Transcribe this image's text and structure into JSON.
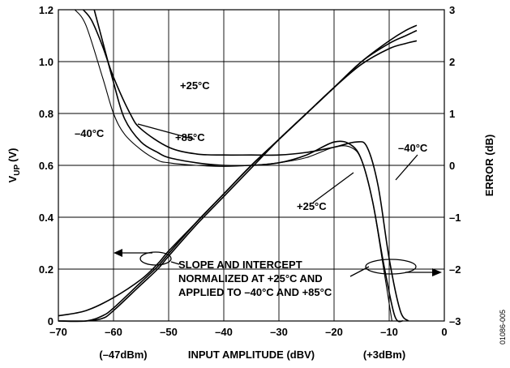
{
  "chart_data": {
    "type": "line",
    "xlabel": "INPUT AMPLITUDE (dBV)",
    "ylabel_left": "V",
    "ylabel_left_sub": "UP",
    "ylabel_left_unit": "(V)",
    "ylabel_right": "ERROR (dB)",
    "xlim": [
      -70,
      0
    ],
    "ylim_left": [
      0,
      1.2
    ],
    "ylim_right": [
      -3,
      3
    ],
    "x_ticks": [
      "–70",
      "–60",
      "–50",
      "–40",
      "–30",
      "–20",
      "–10",
      "0"
    ],
    "y_left_ticks": [
      "0",
      "0.2",
      "0.4",
      "0.6",
      "0.8",
      "1.0",
      "1.2"
    ],
    "y_right_ticks": [
      "–3",
      "–2",
      "–1",
      "0",
      "1",
      "2",
      "3"
    ],
    "x_sub_labels": {
      "left": "(–47dBm)",
      "right": "(+3dBm)"
    },
    "grid": true,
    "annotations": {
      "plus25_top": "+25°C",
      "minus40_left": "–40°C",
      "plus85": "+85°C",
      "minus40_right": "–40°C",
      "plus25_bottom": "+25°C",
      "note_line1": "SLOPE AND INTERCEPT",
      "note_line2": "NORMALIZED AT +25°C AND",
      "note_line3": "APPLIED TO –40°C AND +85°C"
    },
    "figure_id": "01086-005",
    "series": [
      {
        "axis": "left",
        "x": [
          -70,
          -65,
          -60,
          -55,
          -52,
          -50,
          -45,
          -40,
          -35,
          -30,
          -25,
          -20,
          -15,
          -10,
          -7,
          -5
        ],
        "y": [
          0.02,
          0.04,
          0.09,
          0.16,
          0.22,
          0.27,
          0.38,
          0.49,
          0.6,
          0.7,
          0.8,
          0.9,
          1.0,
          1.08,
          1.12,
          1.14
        ]
      },
      {
        "axis": "left",
        "x": [
          -70,
          -65,
          -62,
          -60,
          -55,
          -52,
          -50,
          -45,
          -40,
          -35,
          -30,
          -25,
          -20,
          -15,
          -10,
          -7,
          -5
        ],
        "y": [
          0.0,
          0.0,
          0.02,
          0.05,
          0.15,
          0.21,
          0.26,
          0.38,
          0.49,
          0.6,
          0.7,
          0.8,
          0.9,
          1.0,
          1.07,
          1.1,
          1.12
        ]
      },
      {
        "axis": "left",
        "x": [
          -70,
          -65,
          -62,
          -60,
          -55,
          -52,
          -50,
          -45,
          -40,
          -35,
          -30,
          -25,
          -20,
          -15,
          -10,
          -7,
          -5
        ],
        "y": [
          0.0,
          0.0,
          0.01,
          0.04,
          0.14,
          0.2,
          0.25,
          0.37,
          0.48,
          0.59,
          0.7,
          0.8,
          0.9,
          0.99,
          1.05,
          1.07,
          1.08
        ]
      },
      {
        "axis": "right",
        "x": [
          -65.5,
          -64,
          -62,
          -60,
          -57,
          -55,
          -50,
          -45,
          -40,
          -35,
          -30,
          -25,
          -20,
          -16,
          -14,
          -12,
          -10,
          -8,
          -6.5
        ],
        "y": [
          3.0,
          2.8,
          2.3,
          1.7,
          1.0,
          0.7,
          0.35,
          0.22,
          0.2,
          0.2,
          0.2,
          0.25,
          0.35,
          0.45,
          0.35,
          -0.4,
          -1.8,
          -2.8,
          -3.0
        ]
      },
      {
        "axis": "right",
        "x": [
          -63.5,
          -62,
          -60,
          -58,
          -55,
          -52,
          -50,
          -45,
          -40,
          -35,
          -30,
          -25,
          -20,
          -17,
          -15,
          -13,
          -11,
          -9,
          -7.5
        ],
        "y": [
          3.0,
          2.4,
          1.6,
          0.9,
          0.45,
          0.25,
          0.15,
          0.05,
          0.0,
          0.0,
          0.05,
          0.2,
          0.45,
          0.4,
          0.1,
          -0.7,
          -1.9,
          -2.9,
          -3.0
        ]
      },
      {
        "axis": "right",
        "x": [
          -67,
          -65,
          -62,
          -60,
          -58,
          -55,
          -52,
          -50,
          -45,
          -40,
          -35,
          -30,
          -25,
          -20,
          -17,
          -15,
          -13,
          -11,
          -9.5
        ],
        "y": [
          3.0,
          2.7,
          1.7,
          1.0,
          0.6,
          0.3,
          0.1,
          0.05,
          0.0,
          -0.02,
          0.0,
          0.05,
          0.15,
          0.35,
          0.35,
          0.1,
          -0.7,
          -2.0,
          -3.0
        ]
      }
    ]
  }
}
